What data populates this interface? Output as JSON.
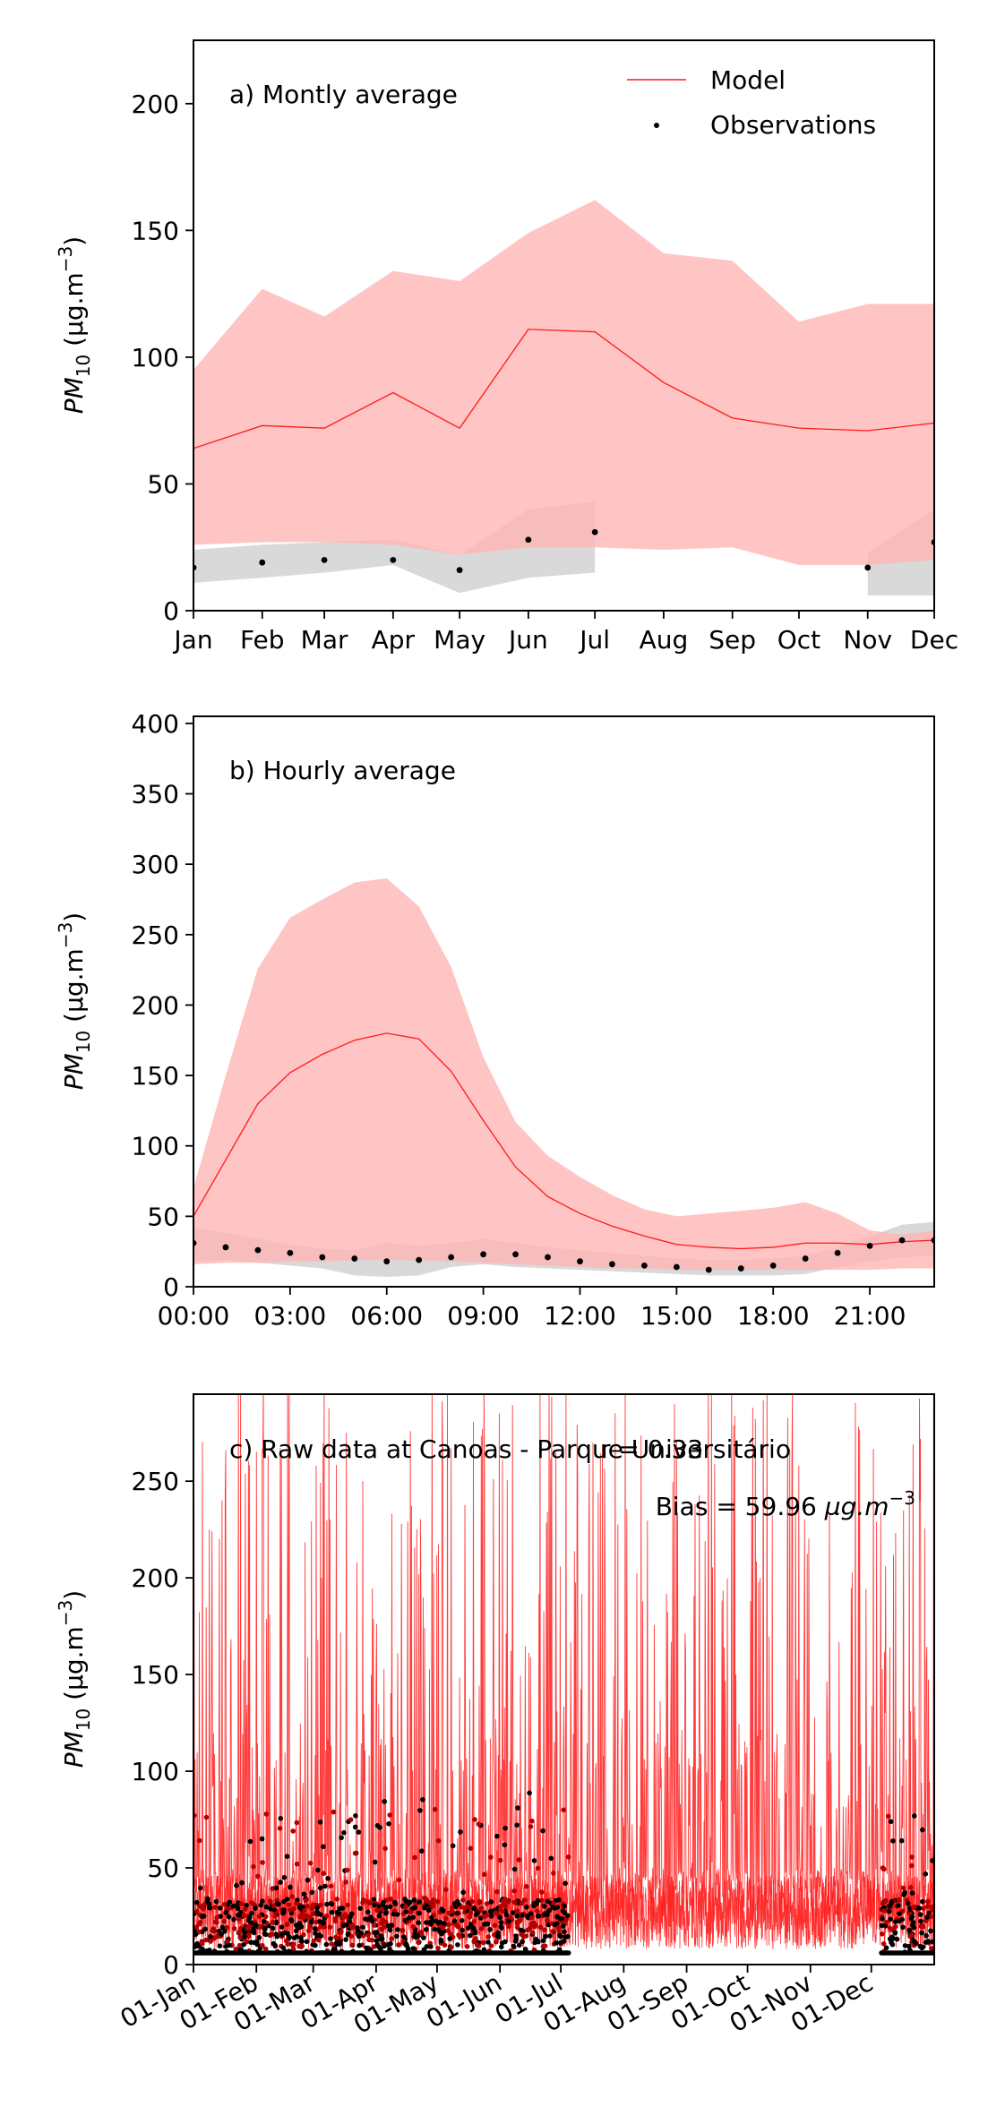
{
  "chart_data": [
    {
      "type": "line",
      "title": "a) Montly average",
      "ylabel": "PM10 (µg.m-3)",
      "ylabel_base": "PM",
      "ylabel_sub": "10",
      "ylabel_unit": " (µg.m",
      "ylabel_sup": "−3",
      "ylabel_close": ")",
      "ylim": [
        0,
        225
      ],
      "yticks": [
        0,
        50,
        100,
        150,
        200
      ],
      "categories": [
        "Jan",
        "Feb",
        "Mar",
        "Apr",
        "May",
        "Jun",
        "Jul",
        "Aug",
        "Sep",
        "Oct",
        "Nov",
        "Dec"
      ],
      "x_day": [
        1,
        32,
        60,
        91,
        121,
        152,
        182,
        213,
        244,
        274,
        305,
        335
      ],
      "x_max_day": 335,
      "legend": {
        "position": "top-right",
        "model": "Model",
        "observations": "Observations"
      },
      "colors": {
        "model_line": "#ff1a1a",
        "model_band": "#ffb3b3",
        "obs_band": "#d9d9d9",
        "obs_points": "#000000"
      },
      "series": [
        {
          "name": "Model",
          "values": [
            64,
            73,
            72,
            86,
            72,
            111,
            110,
            90,
            76,
            72,
            71,
            74
          ]
        },
        {
          "name": "Observations",
          "values": [
            17,
            19,
            20,
            20,
            16,
            28,
            31,
            null,
            null,
            null,
            17,
            27
          ]
        }
      ],
      "model_band": {
        "upper": [
          95,
          127,
          116,
          134,
          130,
          149,
          162,
          141,
          138,
          114,
          121,
          121
        ],
        "lower": [
          26,
          27,
          27,
          26,
          22,
          25,
          25,
          24,
          25,
          18,
          18,
          20
        ]
      },
      "obs_band": {
        "upper": [
          24,
          26,
          27,
          28,
          22,
          40,
          43,
          null,
          null,
          null,
          23,
          40
        ],
        "lower": [
          11,
          13,
          15,
          18,
          7,
          13,
          15,
          null,
          null,
          null,
          6,
          6
        ]
      }
    },
    {
      "type": "line",
      "title": "b) Hourly average",
      "ylabel": "PM10 (µg.m-3)",
      "ylabel_base": "PM",
      "ylabel_sub": "10",
      "ylabel_unit": " (µg.m",
      "ylabel_sup": "−3",
      "ylabel_close": ")",
      "ylim": [
        0,
        405
      ],
      "yticks": [
        0,
        50,
        100,
        150,
        200,
        250,
        300,
        350,
        400
      ],
      "xticks": [
        "00:00",
        "03:00",
        "06:00",
        "09:00",
        "12:00",
        "15:00",
        "18:00",
        "21:00"
      ],
      "xtick_hours": [
        0,
        3,
        6,
        9,
        12,
        15,
        18,
        21
      ],
      "x": [
        0,
        1,
        2,
        3,
        4,
        5,
        6,
        7,
        8,
        9,
        10,
        11,
        12,
        13,
        14,
        15,
        16,
        17,
        18,
        19,
        20,
        21,
        22,
        23
      ],
      "colors": {
        "model_line": "#ff1a1a",
        "model_band": "#ffb3b3",
        "obs_band": "#d9d9d9",
        "obs_points": "#000000"
      },
      "series": [
        {
          "name": "Model",
          "values": [
            50,
            90,
            130,
            152,
            165,
            175,
            180,
            176,
            153,
            118,
            85,
            64,
            52,
            43,
            36,
            30,
            28,
            27,
            28,
            31,
            31,
            30,
            32,
            33
          ]
        },
        {
          "name": "Observations",
          "values": [
            31,
            28,
            26,
            24,
            21,
            20,
            18,
            19,
            21,
            23,
            23,
            21,
            18,
            16,
            15,
            14,
            12,
            13,
            15,
            20,
            24,
            29,
            33,
            33
          ]
        }
      ],
      "model_band": {
        "upper": [
          70,
          150,
          226,
          262,
          275,
          287,
          290,
          270,
          227,
          163,
          117,
          93,
          78,
          65,
          55,
          50,
          52,
          54,
          56,
          60,
          52,
          40,
          37,
          40
        ],
        "lower": [
          16,
          17,
          17,
          18,
          18,
          19,
          19,
          19,
          18,
          17,
          16,
          15,
          14,
          13,
          13,
          12,
          12,
          12,
          12,
          12,
          12,
          12,
          13,
          13
        ]
      },
      "obs_band": {
        "upper": [
          42,
          38,
          34,
          30,
          27,
          26,
          31,
          29,
          31,
          34,
          31,
          28,
          26,
          24,
          22,
          20,
          19,
          19,
          20,
          22,
          28,
          36,
          44,
          46
        ],
        "lower": [
          18,
          19,
          17,
          15,
          13,
          8,
          7,
          8,
          14,
          16,
          14,
          13,
          12,
          11,
          10,
          9,
          8,
          8,
          8,
          9,
          14,
          18,
          21,
          22
        ]
      }
    },
    {
      "type": "line",
      "title": "c) Raw data at Canoas - Parque Universitário",
      "stat_r": "r = 0.33",
      "stat_bias_prefix": "Bias = 59.96 ",
      "stat_bias_unit": "µg.m",
      "stat_bias_sup": "−3",
      "ylabel": "PM10 (µg.m-3)",
      "ylabel_base": "PM",
      "ylabel_sub": "10",
      "ylabel_unit": " (µg.m",
      "ylabel_sup": "−3",
      "ylabel_close": ")",
      "ylim": [
        0,
        295
      ],
      "yticks": [
        0,
        50,
        100,
        150,
        200,
        250
      ],
      "xticks": [
        "01-Jan",
        "01-Feb",
        "01-Mar",
        "01-Apr",
        "01-May",
        "01-Jun",
        "01-Jul",
        "01-Aug",
        "01-Sep",
        "01-Oct",
        "01-Nov",
        "01-Dec"
      ],
      "xtick_days": [
        0,
        31,
        59,
        90,
        120,
        151,
        181,
        212,
        243,
        273,
        304,
        334
      ],
      "x_range_days": [
        0,
        365
      ],
      "obs_periods_days": [
        [
          0,
          185
        ],
        [
          339,
          365
        ]
      ],
      "colors": {
        "model_line": "#ff1a1a",
        "obs_points": "#000000",
        "obs_overlap": "#b30000"
      }
    }
  ]
}
